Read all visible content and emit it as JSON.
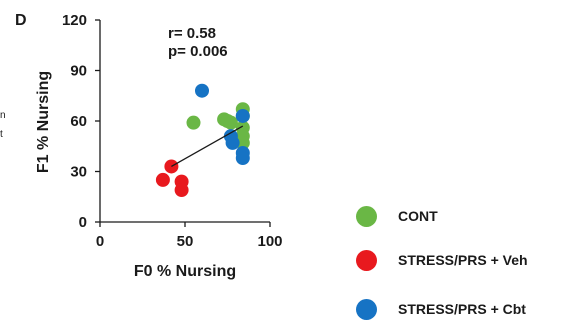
{
  "panel_label": "D",
  "edge_fragments": [
    "n",
    "t"
  ],
  "chart_data": {
    "type": "scatter",
    "xlabel": "F0 % Nursing",
    "ylabel": "F1 % Nursing",
    "xlim": [
      0,
      100
    ],
    "ylim": [
      0,
      120
    ],
    "xticks": [
      0,
      50,
      100
    ],
    "yticks": [
      0,
      30,
      60,
      90,
      120
    ],
    "annotations": [
      "r= 0.58",
      "p= 0.006"
    ],
    "grid": false,
    "legend_position": "bottom-right",
    "series": [
      {
        "name": "CONT",
        "color": "#6ab745",
        "points": [
          {
            "x": 55,
            "y": 59
          },
          {
            "x": 73,
            "y": 61
          },
          {
            "x": 75,
            "y": 60
          },
          {
            "x": 77,
            "y": 59
          },
          {
            "x": 84,
            "y": 67
          },
          {
            "x": 84,
            "y": 63
          },
          {
            "x": 84,
            "y": 56
          },
          {
            "x": 84,
            "y": 51
          },
          {
            "x": 84,
            "y": 47
          }
        ]
      },
      {
        "name": "STRESS/PRS + Veh",
        "color": "#e8191e",
        "points": [
          {
            "x": 37,
            "y": 25
          },
          {
            "x": 42,
            "y": 33
          },
          {
            "x": 48,
            "y": 24
          },
          {
            "x": 48,
            "y": 19
          }
        ]
      },
      {
        "name": "STRESS/PRS + Cbt",
        "color": "#1673c4",
        "points": [
          {
            "x": 60,
            "y": 78
          },
          {
            "x": 77,
            "y": 51
          },
          {
            "x": 78,
            "y": 47
          },
          {
            "x": 84,
            "y": 63
          },
          {
            "x": 84,
            "y": 41
          },
          {
            "x": 84,
            "y": 38
          }
        ]
      }
    ],
    "trendline": {
      "x": [
        42,
        84
      ],
      "y": [
        33,
        57
      ]
    }
  }
}
